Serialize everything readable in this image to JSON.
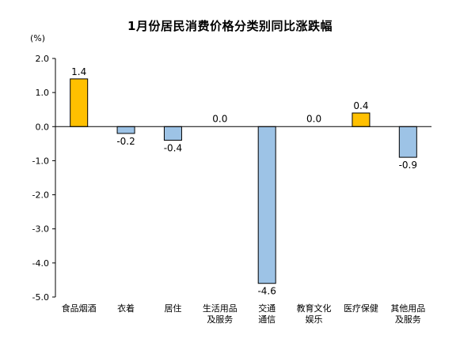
{
  "chart_data": {
    "type": "bar",
    "title": "1月份居民消费价格分类别同比涨跌幅",
    "ylabel": "(%)",
    "ylim": [
      -5.0,
      2.0
    ],
    "yticks": [
      2.0,
      1.0,
      0.0,
      -1.0,
      -2.0,
      -3.0,
      -4.0,
      -5.0
    ],
    "ytick_labels": [
      "2.0",
      "1.0",
      "0.0",
      "-1.0",
      "-2.0",
      "-3.0",
      "-4.0",
      "-5.0"
    ],
    "categories": [
      [
        "食品烟酒"
      ],
      [
        "衣着"
      ],
      [
        "居住"
      ],
      [
        "生活用品",
        "及服务"
      ],
      [
        "交通",
        "通信"
      ],
      [
        "教育文化",
        "娱乐"
      ],
      [
        "医疗保健"
      ],
      [
        "其他用品",
        "及服务"
      ]
    ],
    "values": [
      1.4,
      -0.2,
      -0.4,
      0.0,
      -4.6,
      0.0,
      0.4,
      -0.9
    ],
    "value_labels": [
      "1.4",
      "-0.2",
      "-0.4",
      "0.0",
      "-4.6",
      "0.0",
      "0.4",
      "-0.9"
    ],
    "colors": {
      "positive": "#FFC000",
      "negative": "#9DC3E6",
      "bar_stroke": "#000000",
      "axis": "#000000"
    },
    "grid": false,
    "legend": "none"
  }
}
